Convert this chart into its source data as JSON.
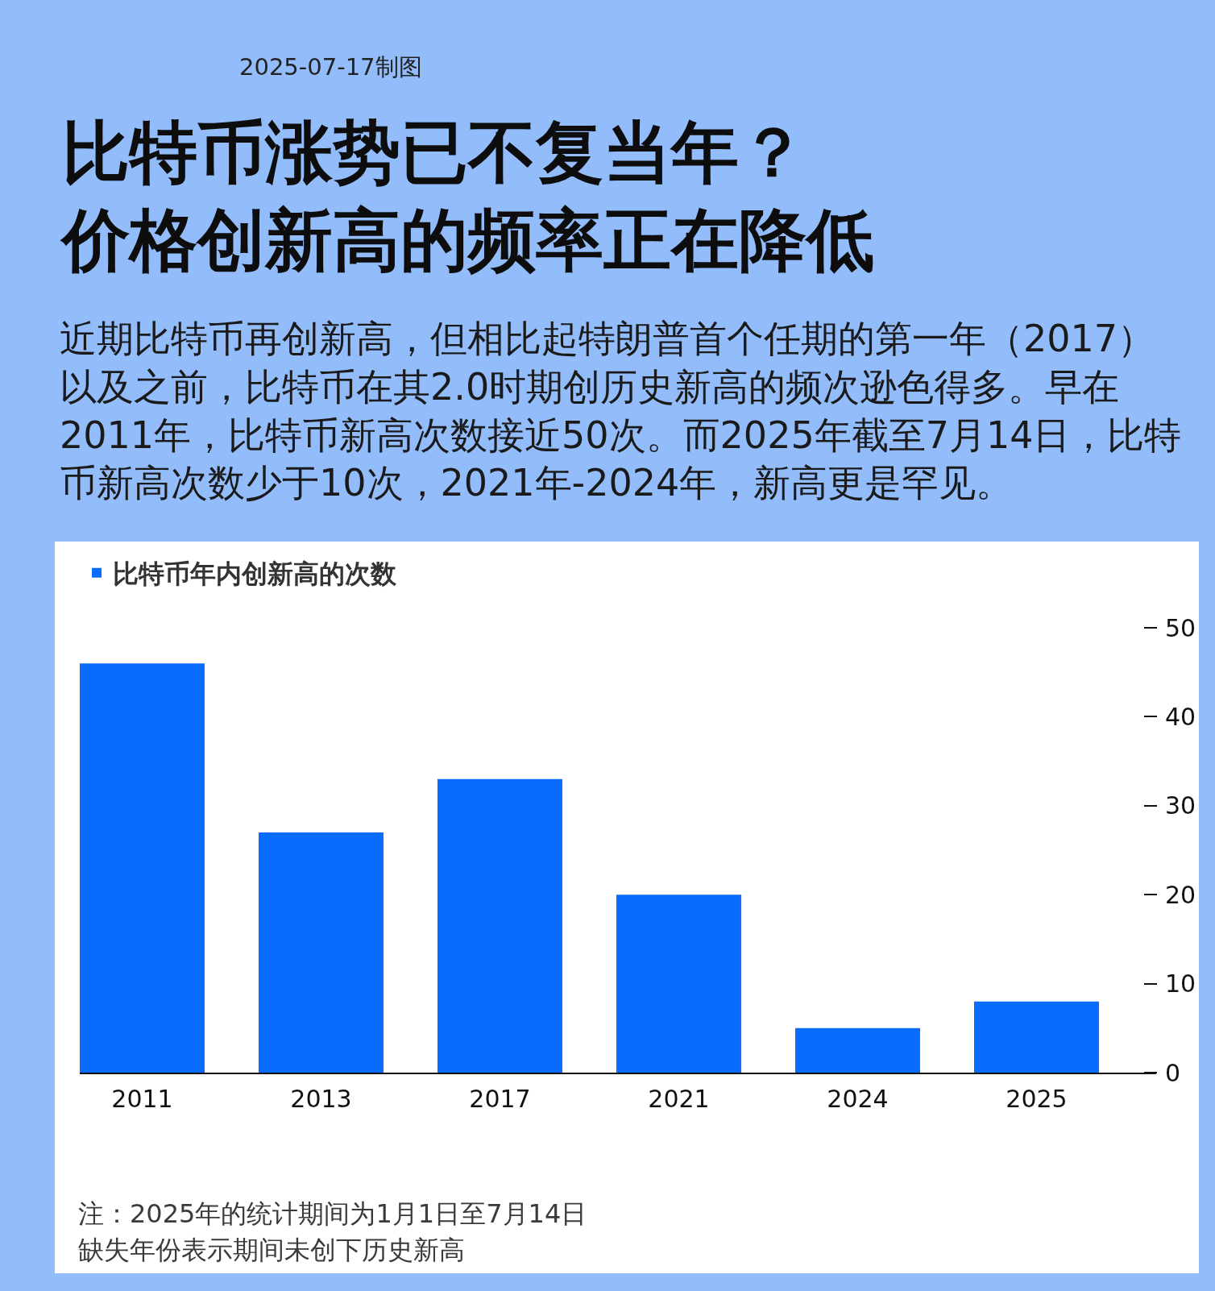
{
  "chart_data": {
    "type": "bar",
    "title": "比特币涨势已不复当年？价格创新高的频率正在降低",
    "subtitle": "近期比特币再创新高，但相比起特朗普首个任期的第一年（2017）以及之前，比特币在其2.0时期创历史新高的频次逊色得多。早在2011年，比特币新高次数接近50次。而2025年截至7月14日，比特币新高次数少于10次，2021年-2024年，新高更是罕见。",
    "annotations": [
      "2025-07-17制图",
      "注：2025年的统计期间为1月1日至7月14日",
      "缺失年份表示期间未创下历史新高"
    ],
    "categories": [
      "2011",
      "2013",
      "2017",
      "2021",
      "2024",
      "2025"
    ],
    "series": [
      {
        "name": "比特币年内创新高的次数",
        "color": "#0a6cff",
        "values": [
          46,
          27,
          33,
          20,
          5,
          8
        ]
      }
    ],
    "ylim": [
      0,
      50
    ],
    "yticks": [
      0,
      10,
      20,
      30,
      40,
      50
    ],
    "legend": "top left"
  }
}
